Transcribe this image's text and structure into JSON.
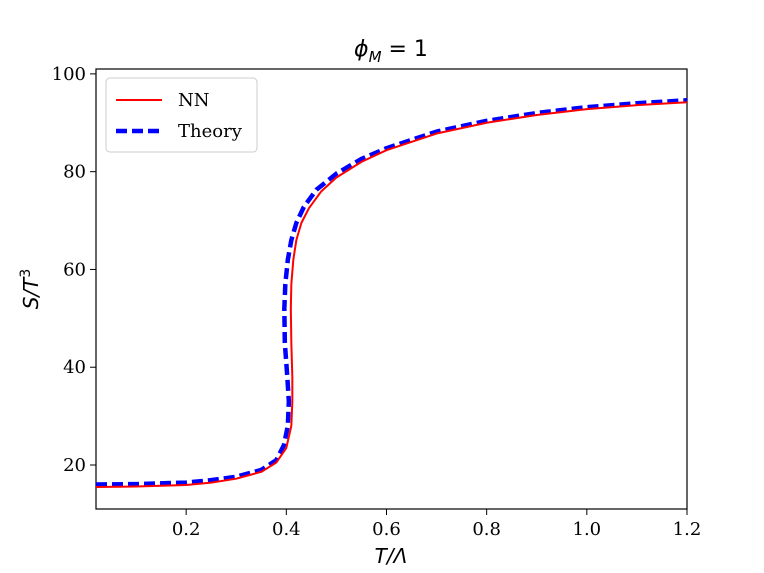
{
  "chart_data": {
    "type": "line",
    "title": {
      "base": "ϕ",
      "sub": "M",
      "rest": " = 1"
    },
    "xlabel": "T/Λ",
    "ylabel": {
      "base": "S/T",
      "sup": "3"
    },
    "xlim": [
      0.02,
      1.2
    ],
    "ylim": [
      11,
      101
    ],
    "xticks": [
      0.2,
      0.4,
      0.6,
      0.8,
      1.0,
      1.2
    ],
    "xtick_labels": [
      "0.2",
      "0.4",
      "0.6",
      "0.8",
      "1.0",
      "1.2"
    ],
    "yticks": [
      20,
      40,
      60,
      80,
      100
    ],
    "ytick_labels": [
      "20",
      "40",
      "60",
      "80",
      "100"
    ],
    "grid": false,
    "legend_position": "top-left",
    "series": [
      {
        "name": "NN",
        "color": "#ff0000",
        "style": "solid",
        "points": [
          [
            0.02,
            15.5
          ],
          [
            0.1,
            15.6
          ],
          [
            0.2,
            15.9
          ],
          [
            0.25,
            16.4
          ],
          [
            0.3,
            17.2
          ],
          [
            0.35,
            18.6
          ],
          [
            0.38,
            20.5
          ],
          [
            0.4,
            23.5
          ],
          [
            0.41,
            28.0
          ],
          [
            0.412,
            33.0
          ],
          [
            0.412,
            38.0
          ],
          [
            0.41,
            45.0
          ],
          [
            0.409,
            52.0
          ],
          [
            0.41,
            57.0
          ],
          [
            0.414,
            62.0
          ],
          [
            0.42,
            66.0
          ],
          [
            0.43,
            69.5
          ],
          [
            0.445,
            72.5
          ],
          [
            0.47,
            76.0
          ],
          [
            0.5,
            78.8
          ],
          [
            0.55,
            82.0
          ],
          [
            0.6,
            84.4
          ],
          [
            0.7,
            87.8
          ],
          [
            0.8,
            90.0
          ],
          [
            0.9,
            91.6
          ],
          [
            1.0,
            92.8
          ],
          [
            1.1,
            93.6
          ],
          [
            1.2,
            94.2
          ]
        ]
      },
      {
        "name": "Theory",
        "color": "#0000ff",
        "style": "dashed",
        "points": [
          [
            0.02,
            16.0
          ],
          [
            0.1,
            16.1
          ],
          [
            0.2,
            16.4
          ],
          [
            0.25,
            16.9
          ],
          [
            0.3,
            17.6
          ],
          [
            0.35,
            19.0
          ],
          [
            0.38,
            21.0
          ],
          [
            0.395,
            24.0
          ],
          [
            0.403,
            28.0
          ],
          [
            0.405,
            33.0
          ],
          [
            0.402,
            38.0
          ],
          [
            0.397,
            45.0
          ],
          [
            0.396,
            52.0
          ],
          [
            0.398,
            57.0
          ],
          [
            0.403,
            62.0
          ],
          [
            0.41,
            66.0
          ],
          [
            0.42,
            69.5
          ],
          [
            0.435,
            72.8
          ],
          [
            0.46,
            76.3
          ],
          [
            0.5,
            79.6
          ],
          [
            0.55,
            82.6
          ],
          [
            0.6,
            84.8
          ],
          [
            0.7,
            88.2
          ],
          [
            0.8,
            90.4
          ],
          [
            0.9,
            92.0
          ],
          [
            1.0,
            93.2
          ],
          [
            1.1,
            94.0
          ],
          [
            1.2,
            94.6
          ]
        ]
      }
    ]
  }
}
